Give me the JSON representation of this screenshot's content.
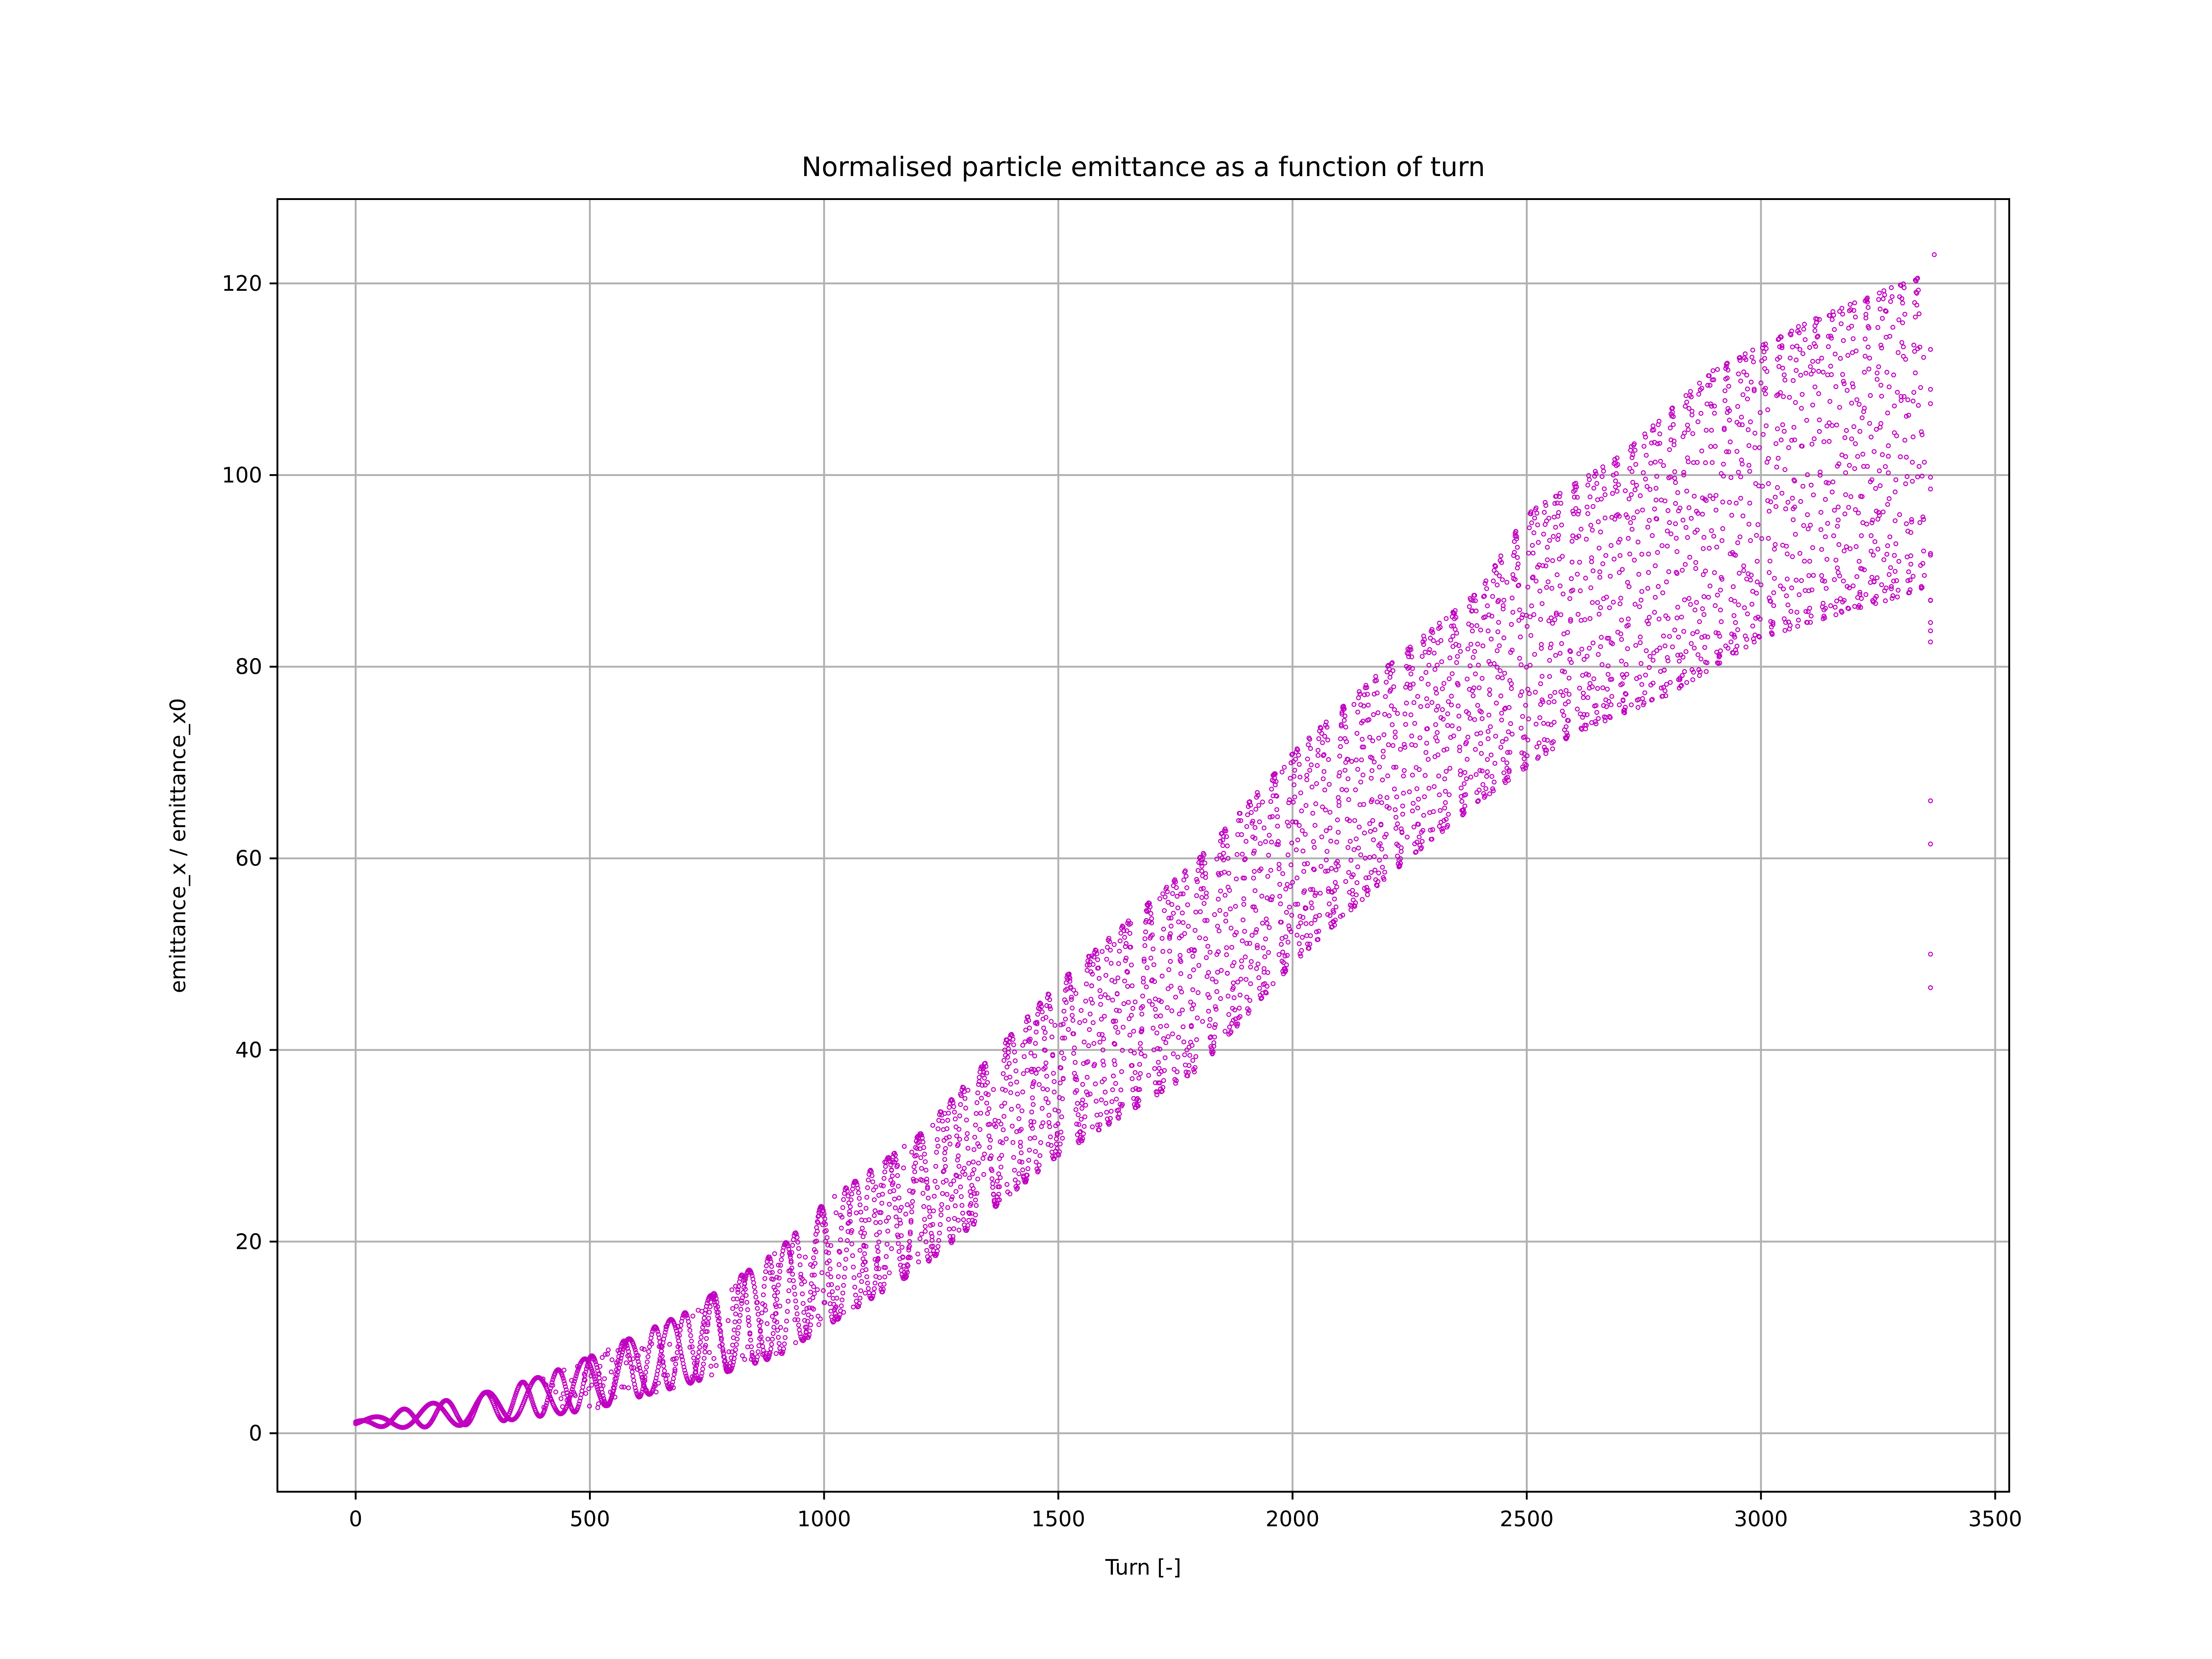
{
  "chart_data": {
    "type": "scatter",
    "title": "Normalised particle emittance as a function of turn",
    "xlabel": "Turn [-]",
    "ylabel": "emittance_x / emittance_x0",
    "xlim": [
      -167,
      3530
    ],
    "ylim": [
      -6.1,
      128.8
    ],
    "xticks": [
      0,
      500,
      1000,
      1500,
      2000,
      2500,
      3000,
      3500
    ],
    "yticks": [
      0,
      20,
      40,
      60,
      80,
      100,
      120
    ],
    "grid": true,
    "legend": "none",
    "marker_color": "#c000c0",
    "series": [
      {
        "marker": "hollow-circle",
        "band_lower": [
          [
            0,
            0.8
          ],
          [
            100,
            0.6
          ],
          [
            200,
            0.7
          ],
          [
            300,
            1.2
          ],
          [
            500,
            2.4
          ],
          [
            700,
            5
          ],
          [
            900,
            8
          ],
          [
            1000,
            11
          ],
          [
            1200,
            17
          ],
          [
            1500,
            29
          ],
          [
            1800,
            38
          ],
          [
            2000,
            49
          ],
          [
            2200,
            58
          ],
          [
            2400,
            66
          ],
          [
            2600,
            73
          ],
          [
            2800,
            77
          ],
          [
            3000,
            83
          ],
          [
            3200,
            86
          ],
          [
            3350,
            88
          ]
        ],
        "band_upper": [
          [
            0,
            1.2
          ],
          [
            100,
            2.5
          ],
          [
            200,
            3.5
          ],
          [
            300,
            4.5
          ],
          [
            400,
            6
          ],
          [
            500,
            8
          ],
          [
            700,
            12.5
          ],
          [
            900,
            19
          ],
          [
            1000,
            24
          ],
          [
            1200,
            31
          ],
          [
            1500,
            47
          ],
          [
            1800,
            60
          ],
          [
            2000,
            71
          ],
          [
            2200,
            80
          ],
          [
            2400,
            88
          ],
          [
            2500,
            96
          ],
          [
            2700,
            102
          ],
          [
            2900,
            111
          ],
          [
            3100,
            116
          ],
          [
            3300,
            120
          ],
          [
            3350,
            121
          ]
        ],
        "highlights": [
          {
            "x": 3370,
            "y": 123
          },
          {
            "x": 3362,
            "y": 66
          },
          {
            "x": 3362,
            "y": 61.5
          },
          {
            "x": 3362,
            "y": 50
          },
          {
            "x": 3362,
            "y": 46.5
          }
        ]
      }
    ]
  }
}
